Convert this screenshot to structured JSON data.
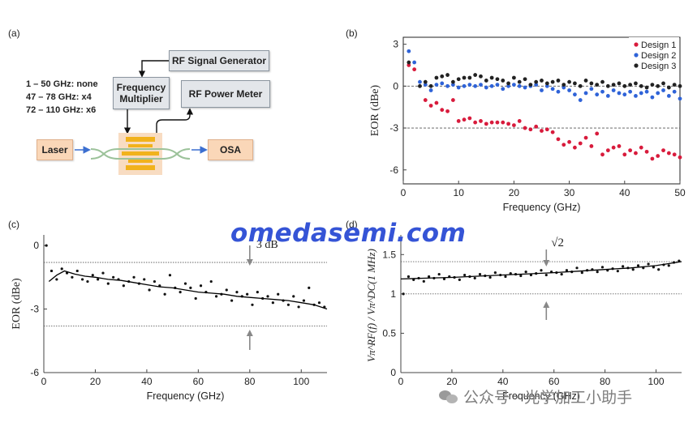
{
  "panels": {
    "a": "(a)",
    "b": "(b)",
    "c": "(c)",
    "d": "(d)"
  },
  "diagram": {
    "rf_signal_generator": "RF Signal Generator",
    "frequency_multiplier": "Frequency Multiplier",
    "rf_power_meter": "RF Power Meter",
    "laser": "Laser",
    "osa": "OSA",
    "multiplier_notes": [
      "1 – 50 GHz: none",
      "47 – 78 GHz: x4",
      "72 – 110 GHz: x6"
    ]
  },
  "watermark": "omedasemi.com",
  "wechat_text": "公众号 · 光学加工小助手",
  "chart_data": [
    {
      "id": "b",
      "type": "scatter",
      "xlabel": "Frequency (GHz)",
      "ylabel": "EOR (dBe)",
      "xlim": [
        0,
        50
      ],
      "ylim": [
        -7,
        3.5
      ],
      "xticks": [
        0,
        10,
        20,
        30,
        40,
        50
      ],
      "yticks": [
        3,
        0,
        -3,
        -6
      ],
      "ref_lines": [
        0,
        -3
      ],
      "legend_position": "top-right",
      "series": [
        {
          "name": "Design 1",
          "color": "#d81b3c",
          "x": [
            1,
            2,
            4,
            5,
            6,
            7,
            8,
            9,
            10,
            11,
            12,
            13,
            14,
            15,
            16,
            17,
            18,
            19,
            20,
            21,
            22,
            23,
            24,
            25,
            26,
            27,
            28,
            29,
            30,
            31,
            32,
            33,
            34,
            35,
            36,
            37,
            38,
            39,
            40,
            41,
            42,
            43,
            44,
            45,
            46,
            47,
            48,
            49,
            50
          ],
          "y": [
            1.5,
            1.2,
            -1.0,
            -1.4,
            -1.2,
            -1.7,
            -1.8,
            -1.0,
            -2.5,
            -2.4,
            -2.3,
            -2.6,
            -2.5,
            -2.7,
            -2.6,
            -2.6,
            -2.6,
            -2.7,
            -2.8,
            -2.5,
            -3.0,
            -3.1,
            -2.9,
            -3.2,
            -3.1,
            -3.3,
            -3.8,
            -4.2,
            -4.0,
            -4.4,
            -4.1,
            -3.7,
            -4.3,
            -3.4,
            -4.9,
            -4.6,
            -4.4,
            -4.3,
            -4.9,
            -4.6,
            -4.8,
            -4.4,
            -4.7,
            -5.2,
            -5.0,
            -4.6,
            -4.8,
            -4.9,
            -5.1
          ]
        },
        {
          "name": "Design 2",
          "color": "#2f63d8",
          "x": [
            1,
            2,
            3,
            4,
            5,
            6,
            7,
            8,
            9,
            10,
            11,
            12,
            13,
            14,
            15,
            16,
            17,
            18,
            19,
            20,
            21,
            22,
            23,
            24,
            25,
            26,
            27,
            28,
            29,
            30,
            31,
            32,
            33,
            34,
            35,
            36,
            37,
            38,
            39,
            40,
            41,
            42,
            43,
            44,
            45,
            46,
            47,
            48,
            49,
            50
          ],
          "y": [
            2.5,
            1.7,
            0.3,
            0.1,
            -0.3,
            0.1,
            0.2,
            0.0,
            0.1,
            -0.1,
            0.0,
            0.1,
            0.0,
            0.1,
            -0.1,
            0.0,
            0.1,
            -0.2,
            0.0,
            0.1,
            0.0,
            -0.1,
            0.0,
            0.1,
            -0.3,
            0.0,
            -0.2,
            -0.4,
            -0.1,
            -0.3,
            -0.6,
            -1.0,
            -0.5,
            -0.2,
            -0.6,
            -0.4,
            -0.7,
            -0.3,
            -0.5,
            -0.6,
            -0.4,
            -0.7,
            -0.5,
            -0.4,
            -0.8,
            -0.5,
            -0.3,
            -0.7,
            -0.4,
            -0.9
          ]
        },
        {
          "name": "Design 3",
          "color": "#222222",
          "x": [
            1,
            3,
            4,
            5,
            6,
            7,
            8,
            9,
            10,
            11,
            12,
            13,
            14,
            15,
            16,
            17,
            18,
            19,
            20,
            21,
            22,
            23,
            24,
            25,
            26,
            27,
            28,
            29,
            30,
            31,
            32,
            33,
            34,
            35,
            36,
            37,
            38,
            39,
            40,
            41,
            42,
            43,
            44,
            45,
            46,
            47,
            48,
            49,
            50
          ],
          "y": [
            1.7,
            0.0,
            0.3,
            0.0,
            0.6,
            0.7,
            0.8,
            0.3,
            0.5,
            0.6,
            0.6,
            0.8,
            0.7,
            0.4,
            0.6,
            0.5,
            0.4,
            0.2,
            0.6,
            0.3,
            0.5,
            0.1,
            0.3,
            0.4,
            0.2,
            0.3,
            0.4,
            0.1,
            0.3,
            0.2,
            0.0,
            0.4,
            0.2,
            0.1,
            0.3,
            0.0,
            0.1,
            0.2,
            0.0,
            0.1,
            0.2,
            0.0,
            -0.1,
            0.1,
            0.0,
            0.2,
            -0.1,
            0.1,
            0.0
          ]
        }
      ]
    },
    {
      "id": "c",
      "type": "scatter",
      "xlabel": "Frequency (GHz)",
      "ylabel": "EOR (dBe)",
      "xlim": [
        0,
        110
      ],
      "ylim": [
        -6,
        0.5
      ],
      "xticks": [
        0,
        20,
        40,
        60,
        80,
        100
      ],
      "yticks": [
        0,
        -3,
        -6
      ],
      "ref_lines": [
        -0.8,
        -3.8
      ],
      "annotation": "3 dB",
      "annotation_x": 80,
      "series": [
        {
          "name": "",
          "color": "#111111",
          "x": [
            1,
            3,
            5,
            7,
            9,
            11,
            13,
            15,
            17,
            19,
            21,
            23,
            25,
            27,
            29,
            31,
            33,
            35,
            37,
            39,
            41,
            43,
            45,
            47,
            49,
            51,
            53,
            55,
            57,
            59,
            61,
            63,
            65,
            67,
            69,
            71,
            73,
            75,
            77,
            79,
            81,
            83,
            85,
            87,
            89,
            91,
            93,
            95,
            97,
            99,
            101,
            103,
            105,
            107,
            109
          ],
          "y": [
            0,
            -1.2,
            -1.6,
            -1.1,
            -1.3,
            -1.5,
            -1.2,
            -1.6,
            -1.7,
            -1.4,
            -1.6,
            -1.3,
            -1.8,
            -1.5,
            -1.6,
            -1.9,
            -1.7,
            -1.5,
            -1.8,
            -1.6,
            -2.1,
            -1.7,
            -1.9,
            -2.3,
            -1.4,
            -2.0,
            -2.2,
            -1.8,
            -2.0,
            -2.5,
            -1.9,
            -2.2,
            -1.7,
            -2.4,
            -2.3,
            -2.1,
            -2.6,
            -2.2,
            -2.4,
            -2.3,
            -2.8,
            -2.2,
            -2.5,
            -2.4,
            -2.7,
            -2.3,
            -2.6,
            -2.8,
            -2.4,
            -2.9,
            -2.6,
            -2.0,
            -2.8,
            -2.7,
            -2.9
          ]
        },
        {
          "name": "",
          "type": "line",
          "color": "#000000",
          "x": [
            2,
            5,
            8,
            12,
            16,
            20,
            25,
            30,
            35,
            40,
            45,
            50,
            55,
            60,
            65,
            70,
            75,
            80,
            85,
            90,
            95,
            100,
            105,
            110
          ],
          "y": [
            -1.7,
            -1.4,
            -1.2,
            -1.35,
            -1.45,
            -1.5,
            -1.6,
            -1.65,
            -1.75,
            -1.85,
            -1.95,
            -2.0,
            -2.1,
            -2.2,
            -2.25,
            -2.3,
            -2.4,
            -2.45,
            -2.5,
            -2.55,
            -2.6,
            -2.7,
            -2.8,
            -3.0
          ]
        }
      ]
    },
    {
      "id": "d",
      "type": "scatter",
      "xlabel": "Frequency (GHz)",
      "ylabel": "Vπ^RF(f) / Vπ^DC(1 MHz)",
      "xlim": [
        0,
        110
      ],
      "ylim": [
        0,
        1.75
      ],
      "xticks": [
        0,
        20,
        40,
        60,
        80,
        100
      ],
      "yticks": [
        1.5,
        1,
        0.5,
        0
      ],
      "ref_lines": [
        1.41,
        1.0
      ],
      "annotation": "√2",
      "annotation_x": 57,
      "series": [
        {
          "name": "",
          "color": "#111111",
          "x": [
            1,
            3,
            5,
            7,
            9,
            11,
            13,
            15,
            17,
            19,
            21,
            23,
            25,
            27,
            29,
            31,
            33,
            35,
            37,
            39,
            41,
            43,
            45,
            47,
            49,
            51,
            53,
            55,
            57,
            59,
            61,
            63,
            65,
            67,
            69,
            71,
            73,
            75,
            77,
            79,
            81,
            83,
            85,
            87,
            89,
            91,
            93,
            95,
            97,
            99,
            101,
            103,
            105,
            107,
            109
          ],
          "y": [
            1.0,
            1.22,
            1.18,
            1.2,
            1.16,
            1.22,
            1.2,
            1.25,
            1.19,
            1.22,
            1.21,
            1.18,
            1.24,
            1.22,
            1.2,
            1.25,
            1.23,
            1.21,
            1.27,
            1.24,
            1.22,
            1.26,
            1.25,
            1.23,
            1.28,
            1.24,
            1.26,
            1.3,
            1.24,
            1.28,
            1.27,
            1.25,
            1.3,
            1.28,
            1.33,
            1.27,
            1.3,
            1.31,
            1.28,
            1.34,
            1.3,
            1.32,
            1.29,
            1.35,
            1.33,
            1.31,
            1.36,
            1.33,
            1.38,
            1.34,
            1.31,
            1.37,
            1.36,
            1.4,
            1.42
          ]
        },
        {
          "name": "",
          "type": "line",
          "color": "#000000",
          "x": [
            0,
            10,
            20,
            30,
            40,
            50,
            60,
            70,
            80,
            90,
            100,
            110
          ],
          "y": [
            1.19,
            1.2,
            1.21,
            1.225,
            1.24,
            1.255,
            1.27,
            1.29,
            1.31,
            1.33,
            1.36,
            1.41
          ]
        }
      ]
    }
  ]
}
